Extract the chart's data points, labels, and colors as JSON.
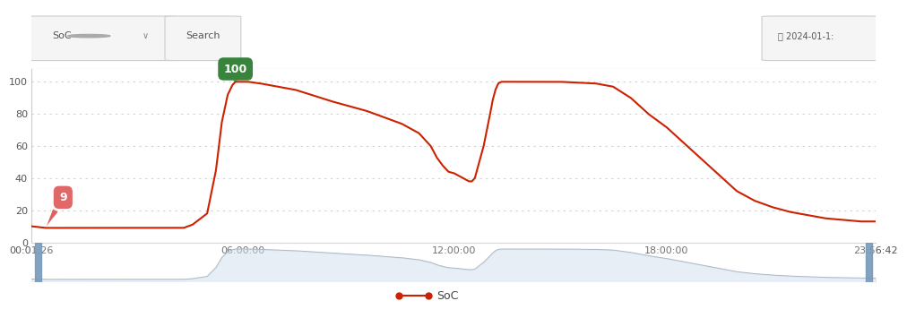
{
  "title": "",
  "xlabel": "",
  "ylabel": "",
  "xlim_start": "00:01:26",
  "xlim_end": "23:56:42",
  "ylim": [
    0,
    108
  ],
  "yticks": [
    0,
    20,
    40,
    60,
    80,
    100
  ],
  "xtick_labels": [
    "00:01:26",
    "06:00:00",
    "12:00:00",
    "18:00:00",
    "23:56:42"
  ],
  "line_color": "#cc2200",
  "line_width": 1.5,
  "grid_color": "#aaddee",
  "background_color": "#ffffff",
  "plot_bg_color": "#ffffff",
  "min_marker_color": "#e06060",
  "max_marker_color": "#2e7d32",
  "min_value": 9,
  "max_value": 100,
  "legend_label": "SoC",
  "legend_marker_color": "#cc2200",
  "header_bg": "#f5f5f5",
  "header_text_color": "#555555",
  "mini_fill_color": "#c8d8e8",
  "mini_bg_color": "#dce8f0"
}
